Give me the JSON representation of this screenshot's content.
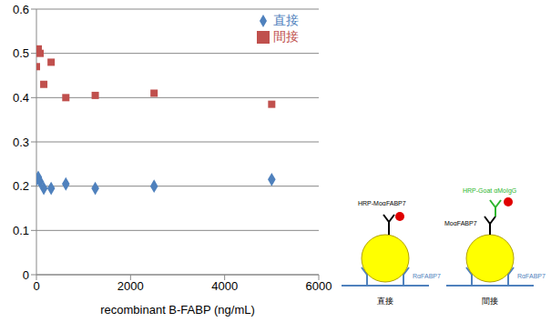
{
  "chart_data": {
    "type": "scatter",
    "x_label": "recombinant B-FABP (ng/mL)",
    "x": [
      0,
      39,
      78,
      156,
      312.5,
      625,
      1250,
      2500,
      5000
    ],
    "series": [
      {
        "name": "直接",
        "color": "#4F81BD",
        "marker": "diamond",
        "values": [
          0.215,
          0.22,
          0.21,
          0.195,
          0.195,
          0.205,
          0.195,
          0.2,
          0.215
        ]
      },
      {
        "name": "間接",
        "color": "#C0504D",
        "marker": "square",
        "values": [
          0.47,
          0.51,
          0.5,
          0.43,
          0.48,
          0.4,
          0.405,
          0.41,
          0.385
        ]
      }
    ],
    "xlim": [
      0,
      6000
    ],
    "xticks": [
      0,
      2000,
      4000,
      6000
    ],
    "ylim": [
      0,
      0.6
    ],
    "yticks": [
      0,
      0.1,
      0.2,
      0.3,
      0.4,
      0.5,
      0.6
    ],
    "grid": true,
    "legend": "upper right"
  },
  "diagrams": [
    {
      "title": "直接",
      "labels": {
        "detection_antibody": "HRP-MoαFABP7",
        "capture_antibody": "RαFABP7"
      }
    },
    {
      "title": "間接",
      "labels": {
        "secondary_antibody": "HRP-Goat αMoIgG",
        "primary_antibody": "MoαFABP7",
        "capture_antibody": "RαFABP7"
      }
    }
  ]
}
